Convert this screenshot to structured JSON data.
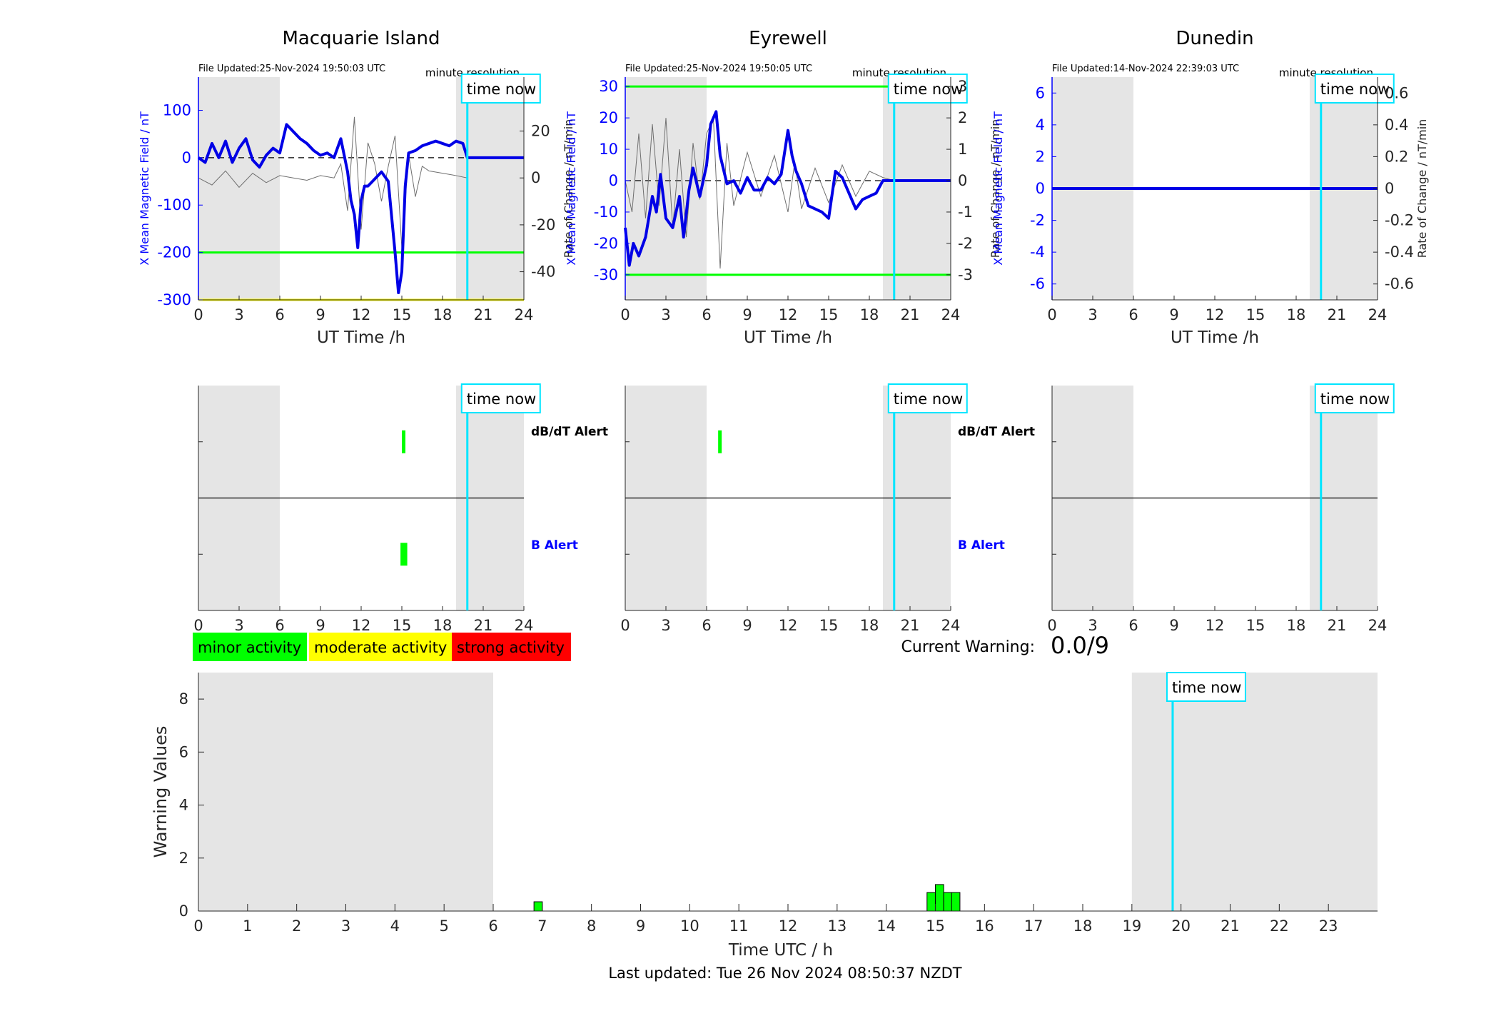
{
  "colors": {
    "axis": "#262626",
    "blue_axis": "#0000ff",
    "field_line": "#0000e6",
    "rate_line": "#6f6f6f",
    "threshold": "#00ff00",
    "strong_threshold": "#ffff00",
    "time_now": "#00e5ff",
    "shade": "#e5e5e5",
    "minor": "#00ff00",
    "moderate": "#ffff00",
    "strong": "#ff0000"
  },
  "labels": {
    "time_now": "time now",
    "minute_resolution": "minute resolution",
    "dbdt_alert": "dB/dT Alert",
    "b_alert": "B Alert",
    "current_warning_label": "Current Warning:",
    "current_warning_value": "0.0/9",
    "last_updated": "Last updated: Tue 26 Nov 2024 08:50:37 NZDT"
  },
  "legend": [
    {
      "label": "minor activity",
      "color": "#00ff00"
    },
    {
      "label": "moderate activity",
      "color": "#ffff00"
    },
    {
      "label": "strong activity",
      "color": "#ff0000"
    }
  ],
  "chart_data": [
    {
      "type": "line",
      "title": "Macquarie Island",
      "file_updated": "File Updated:25-Nov-2024 19:50:03 UTC",
      "xlabel": "UT Time /h",
      "ylabel": "X Mean Magnetic Field / nT",
      "ylabel_right": "Rate of Change / nT/min",
      "xlim": [
        0,
        24
      ],
      "xticks": [
        0,
        3,
        6,
        9,
        12,
        15,
        18,
        21,
        24
      ],
      "ylim": [
        -300,
        170
      ],
      "yticks": [
        -300,
        -200,
        -100,
        0,
        100
      ],
      "ylim_right": [
        -52,
        43
      ],
      "yticks_right": [
        -40,
        -20,
        0,
        20
      ],
      "threshold_lines": [
        {
          "y": -200,
          "color": "#00ff00"
        },
        {
          "y": -300,
          "color": "#ffff00"
        }
      ],
      "time_now": 19.83,
      "shaded": [
        [
          0,
          6
        ],
        [
          19,
          24
        ]
      ],
      "x": [
        0,
        0.5,
        1,
        1.5,
        2,
        2.5,
        3,
        3.5,
        4,
        4.5,
        5,
        5.5,
        6,
        6.5,
        7,
        7.5,
        8,
        8.5,
        9,
        9.5,
        10,
        10.5,
        11,
        11.25,
        11.5,
        11.75,
        12,
        12.25,
        12.5,
        13,
        13.5,
        14,
        14.5,
        14.75,
        15,
        15.25,
        15.5,
        16,
        16.5,
        17,
        17.5,
        18,
        18.5,
        19,
        19.5,
        19.83,
        20,
        22,
        24
      ],
      "series": [
        {
          "values": [
            0,
            -10,
            30,
            0,
            35,
            -10,
            20,
            40,
            -5,
            -20,
            5,
            20,
            10,
            70,
            55,
            40,
            30,
            15,
            5,
            10,
            0,
            40,
            -30,
            -90,
            -120,
            -190,
            -90,
            -60,
            -60,
            -45,
            -30,
            -50,
            -200,
            -285,
            -240,
            -60,
            10,
            15,
            25,
            30,
            35,
            30,
            25,
            35,
            30,
            0,
            0,
            0,
            0
          ]
        }
      ],
      "rate_of_change": {
        "x": [
          0,
          1,
          2,
          3,
          4,
          5,
          6,
          7,
          8,
          9,
          10,
          10.5,
          11,
          11.5,
          12,
          12.5,
          13,
          13.5,
          14,
          14.5,
          15,
          15.5,
          16,
          16.5,
          17,
          18,
          19,
          19.83
        ],
        "values": [
          0,
          -3,
          3,
          -4,
          2,
          -2,
          1,
          0,
          -1,
          1,
          0,
          6,
          -14,
          26,
          -22,
          15,
          6,
          -10,
          5,
          18,
          -30,
          10,
          -8,
          5,
          3,
          2,
          1,
          0
        ]
      }
    },
    {
      "type": "line",
      "title": "Eyrewell",
      "file_updated": "File Updated:25-Nov-2024 19:50:05 UTC",
      "xlabel": "UT Time /h",
      "ylabel": "X Mean Magnetic Field / nT",
      "ylabel_right": "Rate of Change / nT/min",
      "xlim": [
        0,
        24
      ],
      "xticks": [
        0,
        3,
        6,
        9,
        12,
        15,
        18,
        21,
        24
      ],
      "ylim": [
        -38,
        33
      ],
      "yticks": [
        -30,
        -20,
        -10,
        0,
        10,
        20,
        30
      ],
      "ylim_right": [
        -3.8,
        3.3
      ],
      "yticks_right": [
        -3,
        -2,
        -1,
        0,
        1,
        2,
        3
      ],
      "threshold_lines": [
        {
          "y": 30,
          "color": "#00ff00"
        },
        {
          "y": -30,
          "color": "#00ff00"
        }
      ],
      "time_now": 19.83,
      "shaded": [
        [
          0,
          6
        ],
        [
          19,
          24
        ]
      ],
      "x": [
        0,
        0.3,
        0.6,
        1,
        1.5,
        2,
        2.3,
        2.6,
        3,
        3.5,
        4,
        4.3,
        4.7,
        5,
        5.5,
        6,
        6.3,
        6.7,
        7,
        7.5,
        8,
        8.5,
        9,
        9.5,
        10,
        10.5,
        11,
        11.5,
        12,
        12.3,
        12.6,
        13,
        13.5,
        14,
        14.5,
        15,
        15.5,
        16,
        16.5,
        17,
        17.5,
        18,
        18.5,
        19,
        19.83,
        20,
        24
      ],
      "series": [
        {
          "values": [
            -15,
            -27,
            -20,
            -24,
            -18,
            -5,
            -10,
            2,
            -12,
            -15,
            -5,
            -18,
            -3,
            4,
            -5,
            5,
            18,
            22,
            8,
            -1,
            0,
            -4,
            1,
            -3,
            -3,
            1,
            -1,
            2,
            16,
            8,
            3,
            -1,
            -8,
            -9,
            -10,
            -12,
            3,
            1,
            -4,
            -9,
            -6,
            -5,
            -4,
            0,
            0,
            0,
            0
          ]
        }
      ],
      "rate_of_change": {
        "x": [
          0,
          0.5,
          1,
          1.5,
          2,
          2.5,
          3,
          3.5,
          4,
          4.5,
          5,
          5.5,
          6,
          6.5,
          7,
          7.5,
          8,
          9,
          10,
          11,
          12,
          12.5,
          13,
          14,
          15,
          16,
          17,
          18,
          19,
          19.83
        ],
        "values": [
          0,
          -1,
          1.5,
          -1.2,
          1.8,
          -0.8,
          2,
          -1.5,
          1,
          -1.8,
          1.2,
          -0.6,
          1.5,
          2,
          -2.8,
          1.2,
          -0.8,
          0.9,
          -0.5,
          0.8,
          -1,
          0.6,
          -0.9,
          0.4,
          -0.7,
          0.5,
          -0.5,
          0.3,
          0.1,
          0
        ]
      }
    },
    {
      "type": "line",
      "title": "Dunedin",
      "file_updated": "File Updated:14-Nov-2024 22:39:03 UTC",
      "xlabel": "UT Time /h",
      "ylabel": "X Mean Magnetic Field / nT",
      "ylabel_right": "Rate of Change / nT/min",
      "xlim": [
        0,
        24
      ],
      "xticks": [
        0,
        3,
        6,
        9,
        12,
        15,
        18,
        21,
        24
      ],
      "ylim": [
        -7,
        7
      ],
      "yticks": [
        -6,
        -4,
        -2,
        0,
        2,
        4,
        6
      ],
      "ylim_right": [
        -0.7,
        0.7
      ],
      "yticks_right": [
        -0.6,
        -0.4,
        -0.2,
        0,
        0.2,
        0.4,
        0.6
      ],
      "time_now": 19.83,
      "shaded": [
        [
          0,
          6
        ],
        [
          19,
          24
        ]
      ],
      "x": [
        0,
        24
      ],
      "series": [
        {
          "values": [
            0,
            0
          ]
        }
      ]
    },
    {
      "type": "bar",
      "title": "",
      "xlabel": "",
      "xlim": [
        0,
        24
      ],
      "xticks": [
        0,
        3,
        6,
        9,
        12,
        15,
        18,
        21,
        24
      ],
      "rows": [
        "dB/dT Alert",
        "B Alert"
      ],
      "time_now": 19.83,
      "shaded": [
        [
          0,
          6
        ],
        [
          19,
          24
        ]
      ],
      "alerts": [
        {
          "row": "dB/dT Alert",
          "start": 15.0,
          "end": 15.15,
          "level": "minor"
        },
        {
          "row": "B Alert",
          "start": 14.9,
          "end": 15.4,
          "level": "minor"
        }
      ]
    },
    {
      "type": "bar",
      "title": "",
      "xlabel": "",
      "xlim": [
        0,
        24
      ],
      "xticks": [
        0,
        3,
        6,
        9,
        12,
        15,
        18,
        21,
        24
      ],
      "rows": [
        "dB/dT Alert",
        "B Alert"
      ],
      "time_now": 19.83,
      "shaded": [
        [
          0,
          6
        ],
        [
          19,
          24
        ]
      ],
      "alerts": [
        {
          "row": "dB/dT Alert",
          "start": 6.85,
          "end": 7.0,
          "level": "minor"
        }
      ]
    },
    {
      "type": "bar",
      "title": "",
      "xlabel": "",
      "xlim": [
        0,
        24
      ],
      "xticks": [
        0,
        3,
        6,
        9,
        12,
        15,
        18,
        21,
        24
      ],
      "rows": [],
      "time_now": 19.83,
      "shaded": [
        [
          0,
          6
        ],
        [
          19,
          24
        ]
      ],
      "alerts": []
    },
    {
      "type": "bar",
      "title": "",
      "xlabel": "Time UTC / h",
      "ylabel": "Warning Values",
      "xlim": [
        0,
        24
      ],
      "xticks": [
        0,
        1,
        2,
        3,
        4,
        5,
        6,
        7,
        8,
        9,
        10,
        11,
        12,
        13,
        14,
        15,
        16,
        17,
        18,
        19,
        20,
        21,
        22,
        23
      ],
      "ylim": [
        0,
        9
      ],
      "yticks": [
        0,
        2,
        4,
        6,
        8
      ],
      "time_now": 19.83,
      "shaded": [
        [
          0,
          6
        ],
        [
          19,
          24
        ]
      ],
      "bars": [
        {
          "x": 6.83,
          "width": 0.17,
          "value": 0.35
        },
        {
          "x": 14.83,
          "width": 0.17,
          "value": 0.7
        },
        {
          "x": 15.0,
          "width": 0.17,
          "value": 1.0
        },
        {
          "x": 15.17,
          "width": 0.17,
          "value": 0.7
        },
        {
          "x": 15.33,
          "width": 0.17,
          "value": 0.7
        }
      ]
    }
  ]
}
